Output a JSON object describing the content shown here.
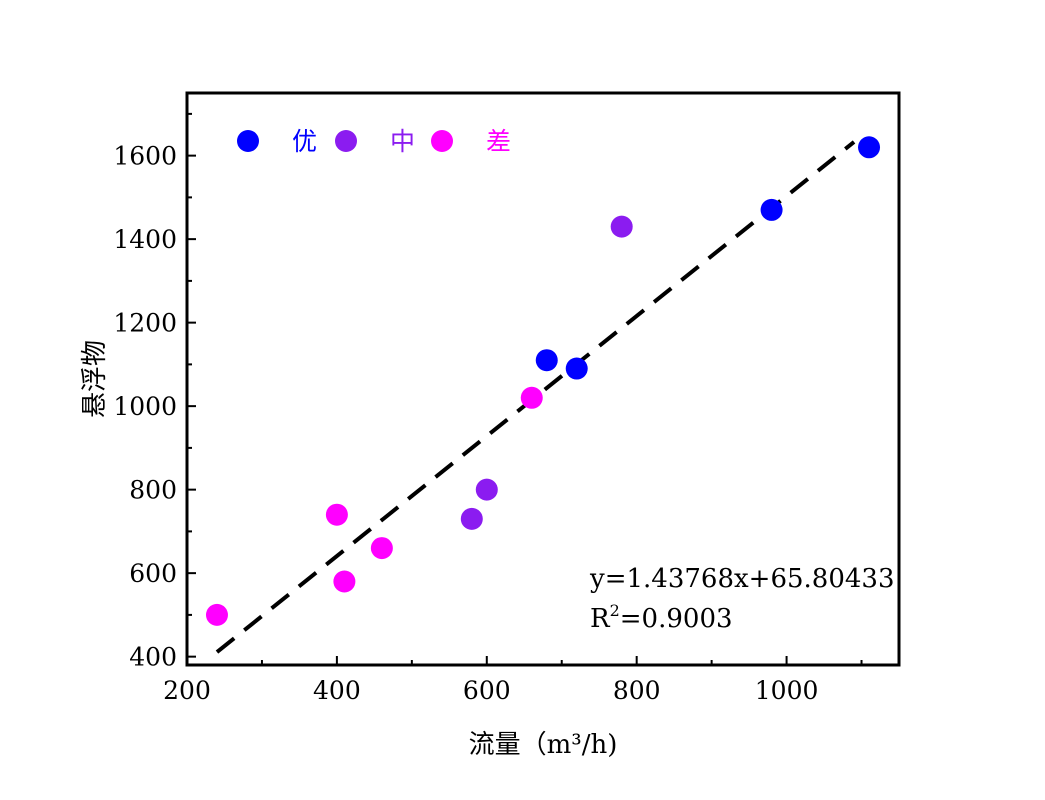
{
  "chart_data": {
    "type": "scatter",
    "xlabel": "流量（m³/h)",
    "ylabel": "悬浮物",
    "xlim": [
      200,
      1150
    ],
    "ylim": [
      380,
      1750
    ],
    "x_ticks": [
      200,
      400,
      600,
      800,
      1000
    ],
    "y_ticks": [
      400,
      600,
      800,
      1000,
      1200,
      1400,
      1600
    ],
    "x_tick_labels": [
      "200",
      "400",
      "600",
      "800",
      "1000"
    ],
    "y_tick_labels": [
      "400",
      "600",
      "800",
      "1000",
      "1200",
      "1400",
      "1600"
    ],
    "legend_position": "top-left",
    "series": [
      {
        "name": "优",
        "color": "#0000ff",
        "points": [
          [
            680,
            1110
          ],
          [
            720,
            1090
          ],
          [
            980,
            1470
          ],
          [
            1110,
            1620
          ]
        ]
      },
      {
        "name": "中",
        "color": "#8b1cf0",
        "points": [
          [
            580,
            730
          ],
          [
            600,
            800
          ],
          [
            780,
            1430
          ]
        ]
      },
      {
        "name": "差",
        "color": "#ff00ff",
        "points": [
          [
            240,
            500
          ],
          [
            400,
            740
          ],
          [
            410,
            580
          ],
          [
            460,
            660
          ],
          [
            660,
            1020
          ]
        ]
      }
    ],
    "fit_line": {
      "slope": 1.43768,
      "intercept": 65.80433,
      "x_range": [
        240,
        1090
      ],
      "style": "dashed",
      "color": "#000000"
    },
    "annotation": {
      "equation": "y=1.43768x+65.80433",
      "r2_prefix": "R",
      "r2_sup": "2",
      "r2_value": "=0.9003"
    }
  }
}
